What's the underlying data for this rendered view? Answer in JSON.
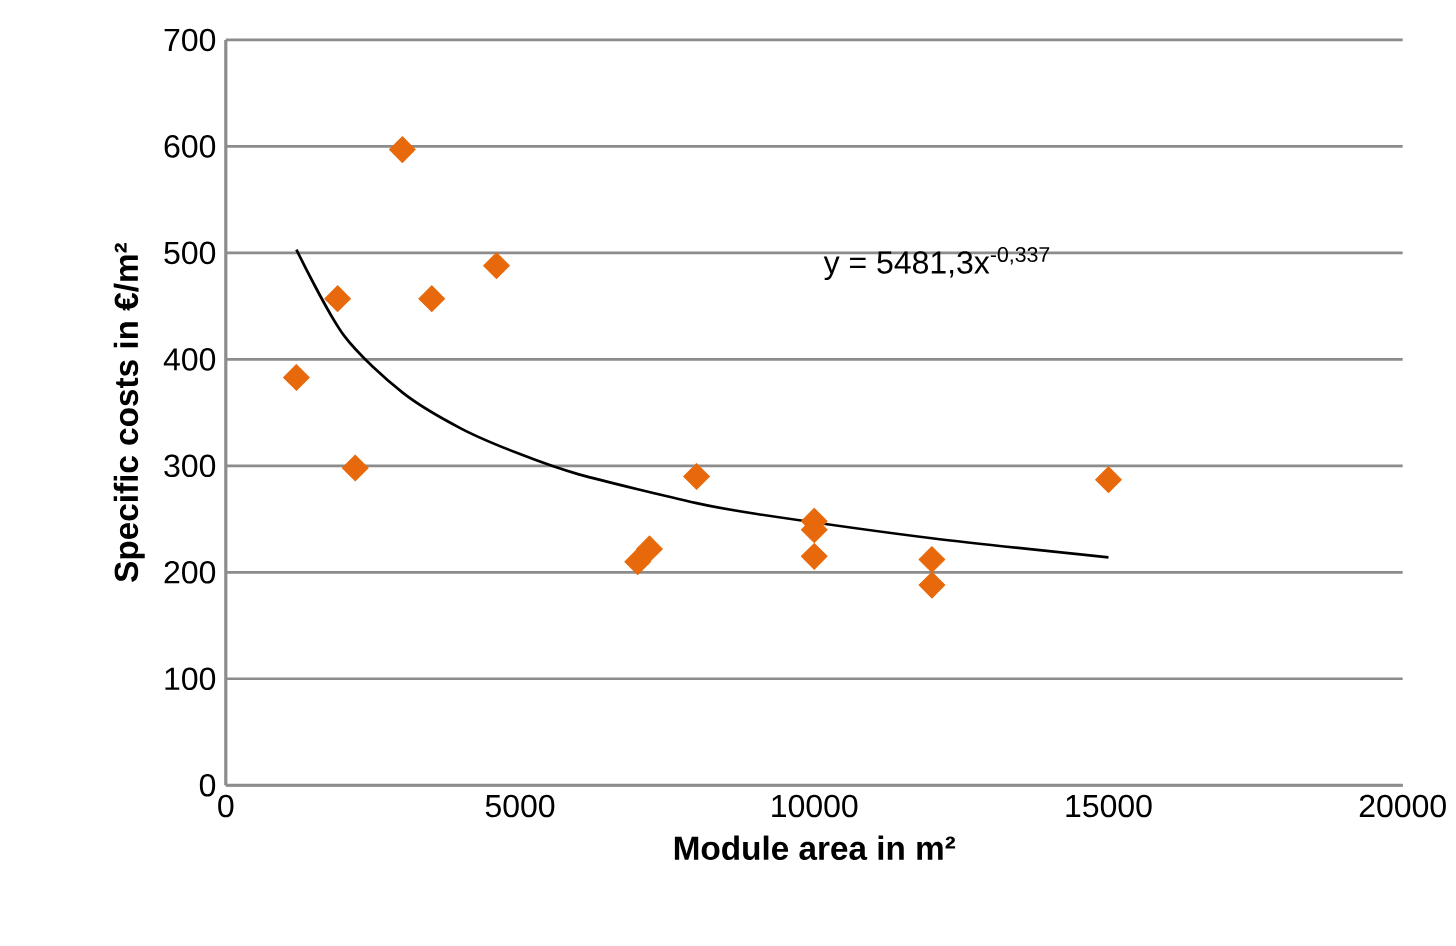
{
  "chart_data": {
    "type": "scatter",
    "xlabel": "Module area in m²",
    "ylabel": "Specific costs in €/m²",
    "xlim": [
      0,
      20000
    ],
    "xticks": [
      0,
      5000,
      10000,
      15000,
      20000
    ],
    "ylim": [
      0,
      700
    ],
    "yticks": [
      0,
      100,
      200,
      300,
      400,
      500,
      600,
      700
    ],
    "grid": "y",
    "marker": "diamond",
    "series": [
      {
        "color": "#e8690b",
        "x": [
          1200,
          1900,
          2200,
          3000,
          3500,
          4600,
          7000,
          7200,
          8000,
          10000,
          10000,
          10000,
          12000,
          12000,
          15000
        ],
        "values": [
          383,
          457,
          298,
          597,
          457,
          488,
          210,
          222,
          290,
          248,
          240,
          215,
          212,
          188,
          287
        ]
      },
      {
        "type": "line",
        "color": "#000000",
        "marker": "none",
        "x": [
          1200,
          2000,
          3000,
          4000,
          5000,
          6000,
          8000,
          9000,
          12000,
          15000
        ],
        "values": [
          503,
          423,
          369,
          335,
          311,
          292,
          265,
          255,
          232,
          214
        ]
      }
    ],
    "annotations": [
      "y = 5481,3x$^{-0,337}$"
    ]
  }
}
